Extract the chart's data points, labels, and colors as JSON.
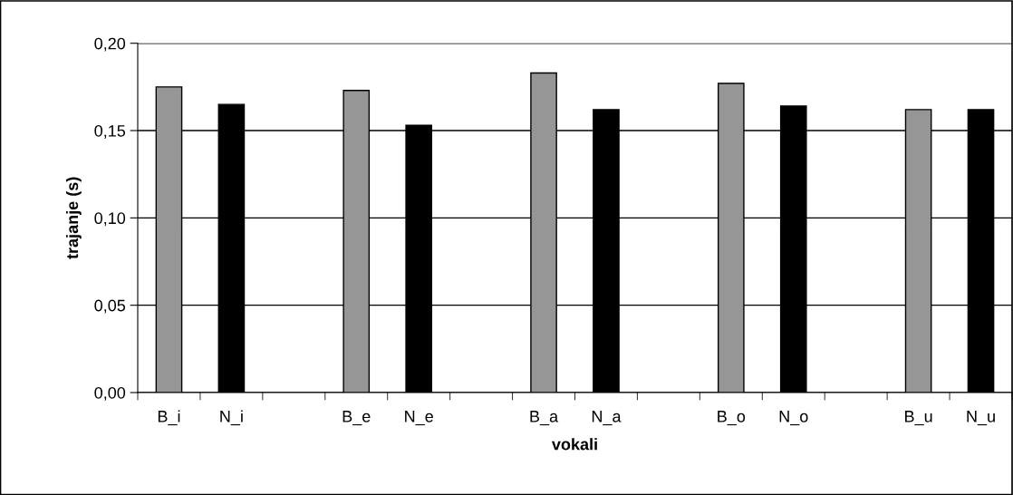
{
  "chart_data": {
    "type": "bar",
    "xlabel": "vokali",
    "ylabel": "trajanje (s)",
    "categories": [
      "B_i",
      "N_i",
      null,
      "B_e",
      "N_e",
      null,
      "B_a",
      "N_a",
      null,
      "B_o",
      "N_o",
      null,
      "B_u",
      "N_u"
    ],
    "values": [
      0.175,
      0.165,
      null,
      0.173,
      0.153,
      null,
      0.183,
      0.162,
      null,
      0.177,
      0.164,
      null,
      0.162,
      0.162
    ],
    "colors": [
      "#969696",
      "#000000",
      null,
      "#969696",
      "#000000",
      null,
      "#969696",
      "#000000",
      null,
      "#969696",
      "#000000",
      null,
      "#969696",
      "#000000"
    ],
    "ylim": [
      0,
      0.2
    ],
    "yticks": [
      {
        "value": 0,
        "label": "0,00"
      },
      {
        "value": 0.05,
        "label": "0,05"
      },
      {
        "value": 0.1,
        "label": "0,10"
      },
      {
        "value": 0.15,
        "label": "0,15"
      },
      {
        "value": 0.2,
        "label": "0,20"
      }
    ],
    "grid": "y"
  }
}
